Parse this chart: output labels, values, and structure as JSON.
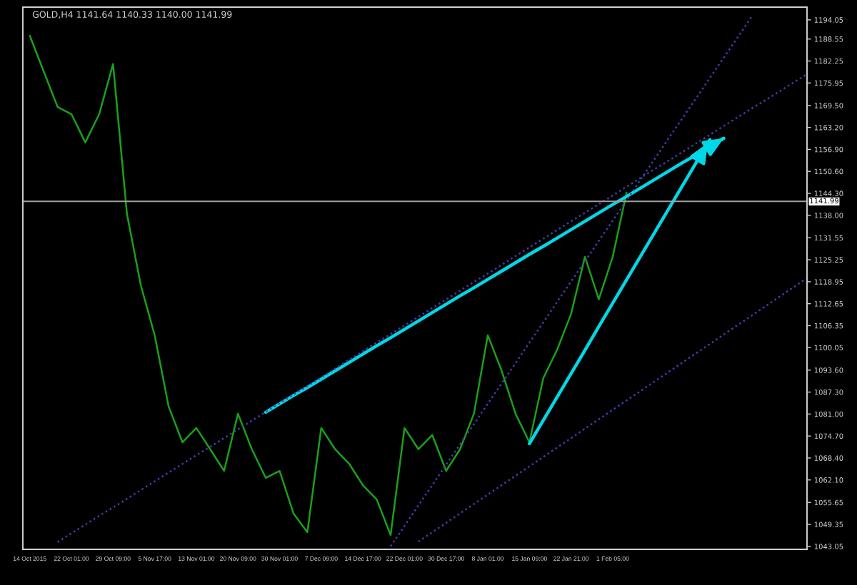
{
  "chart_data": {
    "type": "line",
    "title": "GOLD,H4 1141.64 1140.33 1140.00 1141.99",
    "categories": [
      "14 Oct 2015",
      null,
      null,
      "22 Oct 01:00",
      null,
      null,
      "29 Oct 09:00",
      null,
      null,
      "5 Nov 17:00",
      null,
      null,
      "13 Nov 01:00",
      null,
      null,
      "20 Nov 09:00",
      null,
      null,
      "30 Nov 01:00",
      null,
      null,
      "7 Dec 09:00",
      null,
      null,
      "14 Dec 17:00",
      null,
      null,
      "22 Dec 01:00",
      null,
      null,
      "30 Dec 17:00",
      null,
      null,
      "8 Jan 01:00",
      null,
      null,
      "15 Jan 09:00",
      null,
      null,
      "22 Jan 21:00",
      null,
      null,
      "1 Feb 05:00",
      null,
      null,
      null,
      null,
      null,
      null,
      null,
      null,
      null,
      null,
      null,
      null,
      null,
      null
    ],
    "ylim": [
      1042.2,
      1197.7
    ],
    "yticks": [
      {
        "value": 1043.05,
        "label": "1043.05"
      },
      {
        "value": 1049.35,
        "label": "1049.35"
      },
      {
        "value": 1055.65,
        "label": "1055.65"
      },
      {
        "value": 1062.1,
        "label": "1062.10"
      },
      {
        "value": 1068.4,
        "label": "1068.40"
      },
      {
        "value": 1074.7,
        "label": "1074.70"
      },
      {
        "value": 1081,
        "label": "1081.00"
      },
      {
        "value": 1087.3,
        "label": "1087.30"
      },
      {
        "value": 1093.6,
        "label": "1093.60"
      },
      {
        "value": 1100.05,
        "label": "1100.05"
      },
      {
        "value": 1106.35,
        "label": "1106.35"
      },
      {
        "value": 1112.65,
        "label": "1112.65"
      },
      {
        "value": 1118.95,
        "label": "1118.95"
      },
      {
        "value": 1125.25,
        "label": "1125.25"
      },
      {
        "value": 1131.55,
        "label": "1131.55"
      },
      {
        "value": 1138,
        "label": "1138.00"
      },
      {
        "value": 1144.3,
        "label": "1144.30"
      },
      {
        "value": 1150.6,
        "label": "1150.60"
      },
      {
        "value": 1156.9,
        "label": "1156.90"
      },
      {
        "value": 1163.2,
        "label": "1163.20"
      },
      {
        "value": 1169.5,
        "label": "1169.50"
      },
      {
        "value": 1175.95,
        "label": "1175.95"
      },
      {
        "value": 1182.25,
        "label": "1182.25"
      },
      {
        "value": 1188.55,
        "label": "1188.55"
      },
      {
        "value": 1194.05,
        "label": "1194.05"
      }
    ],
    "grid": false,
    "ref_lines": [
      {
        "axis": "y",
        "value": 1141.99,
        "label": "1141.99",
        "color": "#a0a0a0",
        "line_style": "solid"
      }
    ],
    "series": [
      {
        "color": "#1aa01a",
        "line_style": "solid",
        "marker": "none",
        "values": [
          1189.5,
          1179.3,
          1169.1,
          1167.0,
          1158.9,
          1167.0,
          1181.4,
          1138.4,
          1117.9,
          1103.6,
          1083.2,
          1072.9,
          1077.0,
          1070.9,
          1064.7,
          1081.1,
          1070.9,
          1062.7,
          1064.7,
          1052.5,
          1047.1,
          1077.0,
          1070.9,
          1066.8,
          1060.6,
          1056.5,
          1046.3,
          1077.0,
          1070.9,
          1075.0,
          1064.7,
          1070.9,
          1081.1,
          1103.6,
          1093.4,
          1081.1,
          1072.9,
          1091.3,
          1099.5,
          1109.7,
          1126.1,
          1113.9,
          1126.1,
          1144.5,
          null,
          null,
          null,
          null,
          null,
          null,
          null,
          null,
          null,
          null,
          null,
          null,
          null
        ]
      },
      {
        "color": "#00d8e8",
        "line_style": "solid",
        "values": [
          null,
          null,
          null,
          null,
          null,
          null,
          null,
          null,
          null,
          null,
          null,
          null,
          null,
          null,
          null,
          null,
          null,
          1081.5,
          1083.9,
          1086.3,
          1088.6,
          1091.0,
          1093.4,
          1095.8,
          1098.2,
          1100.6,
          1102.9,
          1105.3,
          1107.7,
          1110.1,
          1112.5,
          1114.9,
          1117.2,
          1119.6,
          1122.0,
          1124.4,
          1126.8,
          1129.1,
          1131.5,
          1133.9,
          1136.3,
          1138.7,
          1141.1,
          1143.4,
          1145.8,
          1148.2,
          1150.6,
          1153.0,
          1155.3,
          1157.7,
          1160.1,
          null,
          null,
          null,
          null,
          null,
          null
        ]
      },
      {
        "color": "#00d8e8",
        "line_style": "solid",
        "values": [
          null,
          null,
          null,
          null,
          null,
          null,
          null,
          null,
          null,
          null,
          null,
          null,
          null,
          null,
          null,
          null,
          null,
          null,
          null,
          null,
          null,
          null,
          null,
          null,
          null,
          null,
          null,
          null,
          null,
          null,
          null,
          null,
          null,
          null,
          null,
          null,
          1072.5,
          1079.2,
          1085.9,
          1092.6,
          1099.3,
          1106.1,
          1112.8,
          1119.5,
          1126.2,
          1132.9,
          1139.6,
          1146.3,
          1153.0,
          1159.7,
          null,
          null,
          null,
          null,
          null,
          null,
          null
        ]
      },
      {
        "color": "#4040b0",
        "line_style": "dotted",
        "marker": "none",
        "values": [
          null,
          null,
          1044.3,
          1046.8,
          1049.3,
          1051.8,
          1054.2,
          1056.7,
          1059.2,
          1061.7,
          1064.2,
          1066.7,
          1069.2,
          1071.6,
          1074.1,
          1076.6,
          1079.1,
          1081.6,
          1084.1,
          1086.6,
          1089.0,
          1091.5,
          1094.0,
          1096.5,
          1099.0,
          1101.5,
          1103.9,
          1106.4,
          1108.9,
          1111.4,
          1113.9,
          1116.4,
          1118.9,
          1121.3,
          1123.8,
          1126.3,
          1128.8,
          1131.3,
          1133.8,
          1136.3,
          1138.7,
          1141.2,
          1143.7,
          1146.2,
          1148.7,
          1151.2,
          1153.6,
          1156.1,
          1158.6,
          1161.1,
          1163.6,
          1166.1,
          1168.6,
          1171.0,
          1173.5,
          1176.0,
          1178.5
        ]
      },
      {
        "color": "#4040b0",
        "line_style": "dotted",
        "marker": "none",
        "values": [
          null,
          null,
          null,
          null,
          null,
          null,
          null,
          null,
          null,
          null,
          null,
          null,
          null,
          null,
          null,
          null,
          null,
          null,
          null,
          null,
          null,
          null,
          null,
          null,
          null,
          null,
          1043.1,
          1048.9,
          1054.8,
          1060.6,
          1066.5,
          1072.3,
          1078.1,
          1084.0,
          1089.8,
          1095.6,
          1101.5,
          1107.3,
          1113.2,
          1119.0,
          1124.8,
          1130.7,
          1136.5,
          1142.3,
          1148.2,
          1154.0,
          1159.9,
          1165.7,
          1171.5,
          1177.4,
          1183.2,
          1189.0,
          1194.9,
          null,
          null,
          null,
          null
        ]
      },
      {
        "color": "#4040b0",
        "line_style": "dotted",
        "marker": "none",
        "values": [
          null,
          null,
          null,
          null,
          null,
          null,
          null,
          null,
          null,
          null,
          null,
          null,
          null,
          null,
          null,
          null,
          null,
          null,
          null,
          null,
          null,
          null,
          null,
          null,
          null,
          null,
          null,
          null,
          1044.4,
          1047.1,
          1049.8,
          1052.5,
          1055.2,
          1057.9,
          1060.6,
          1063.3,
          1066.0,
          1068.7,
          1071.4,
          1074.1,
          1076.8,
          1079.5,
          1082.2,
          1084.9,
          1087.6,
          1090.3,
          1093.0,
          1095.7,
          1098.4,
          1101.1,
          1103.8,
          1106.5,
          1109.2,
          1111.9,
          1114.6,
          1117.3,
          1120.0
        ]
      }
    ]
  }
}
